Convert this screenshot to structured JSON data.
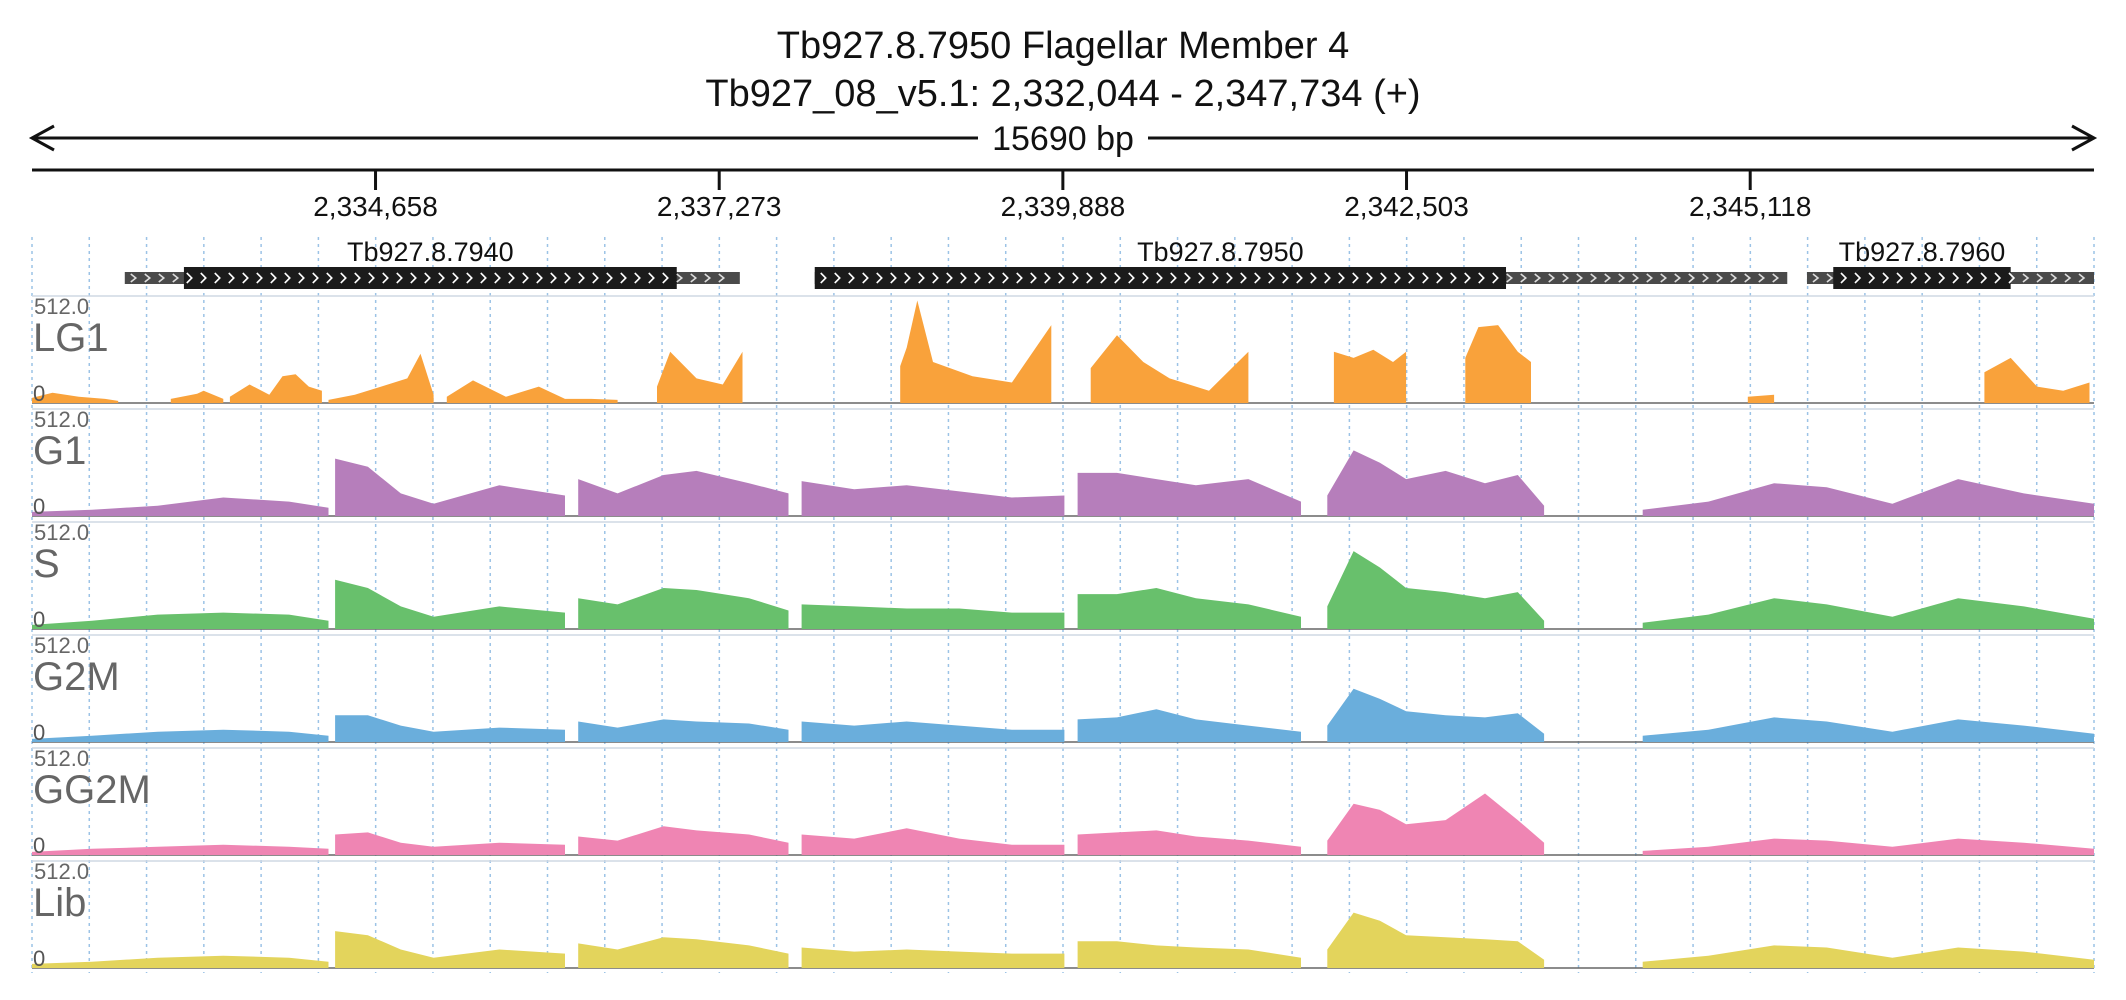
{
  "header": {
    "title_line1": "Tb927.8.7950  Flagellar Member 4",
    "title_line2": "Tb927_08_v5.1: 2,332,044 - 2,347,734 (+)",
    "span_label": "15690 bp"
  },
  "chart_data": {
    "type": "area",
    "region": {
      "chromosome": "Tb927_08_v5.1",
      "start": 2332044,
      "end": 2347734,
      "strand": "+"
    },
    "x_ticks": [
      {
        "pos": 2334658,
        "label": "2,334,658"
      },
      {
        "pos": 2337273,
        "label": "2,337,273"
      },
      {
        "pos": 2339888,
        "label": "2,339,888"
      },
      {
        "pos": 2342503,
        "label": "2,342,503"
      },
      {
        "pos": 2345118,
        "label": "2,345,118"
      }
    ],
    "genes": [
      {
        "name": "Tb927.8.7940",
        "utr_start": 2332750,
        "cds_start": 2333200,
        "cds_end": 2336950,
        "utr_end": 2337430
      },
      {
        "name": "Tb927.8.7950",
        "utr_start": 2338000,
        "cds_start": 2338000,
        "cds_end": 2343260,
        "utr_end": 2345400
      },
      {
        "name": "Tb927.8.7960",
        "utr_start": 2345550,
        "cds_start": 2345750,
        "cds_end": 2347100,
        "utr_end": 2347734
      }
    ],
    "ylim": [
      0,
      512
    ],
    "y_max_label": "512.0",
    "y_min_label": "0",
    "series": [
      {
        "name": "LG1",
        "color": "#f9a23b",
        "segments": [
          {
            "x": [
              2332044,
              2332200,
              2332400,
              2332600,
              2332700
            ],
            "y": [
              25,
              50,
              30,
              20,
              10
            ]
          },
          {
            "x": [
              2333100,
              2333300,
              2333350,
              2333500
            ],
            "y": [
              20,
              45,
              60,
              20
            ]
          },
          {
            "x": [
              2333550,
              2333700,
              2333850,
              2333950,
              2334050,
              2334150,
              2334250
            ],
            "y": [
              30,
              90,
              40,
              130,
              140,
              80,
              60
            ]
          },
          {
            "x": [
              2334300,
              2334500,
              2334700,
              2334900,
              2335000,
              2335100
            ],
            "y": [
              15,
              40,
              80,
              120,
              240,
              40
            ]
          },
          {
            "x": [
              2335200,
              2335400,
              2335650,
              2335900,
              2336100,
              2336300,
              2336500
            ],
            "y": [
              30,
              110,
              30,
              80,
              20,
              20,
              15
            ]
          },
          {
            "x": [
              2336800,
              2336900,
              2337100,
              2337300,
              2337450
            ],
            "y": [
              80,
              250,
              120,
              90,
              250
            ]
          },
          {
            "x": [
              2338650,
              2338700,
              2338780,
              2338900,
              2339200,
              2339500,
              2339800
            ],
            "y": [
              180,
              270,
              500,
              200,
              130,
              100,
              380
            ]
          },
          {
            "x": [
              2340100,
              2340300,
              2340500,
              2340700,
              2341000,
              2341300
            ],
            "y": [
              170,
              330,
              200,
              120,
              60,
              250
            ]
          },
          {
            "x": [
              2341950,
              2342100,
              2342250,
              2342400,
              2342500
            ],
            "y": [
              250,
              220,
              260,
              200,
              250
            ]
          },
          {
            "x": [
              2342950,
              2343050,
              2343200,
              2343350,
              2343450
            ],
            "y": [
              220,
              370,
              380,
              250,
              200
            ]
          },
          {
            "x": [
              2345100,
              2345300
            ],
            "y": [
              30,
              40
            ]
          },
          {
            "x": [
              2346900,
              2347100,
              2347300,
              2347500,
              2347700
            ],
            "y": [
              150,
              220,
              80,
              60,
              100
            ]
          }
        ]
      },
      {
        "name": "G1",
        "color": "#b67ebb",
        "segments": [
          {
            "x": [
              2332044,
              2332500,
              2333000,
              2333500,
              2334000,
              2334300
            ],
            "y": [
              20,
              30,
              50,
              90,
              70,
              40
            ]
          },
          {
            "x": [
              2334350,
              2334600,
              2334850,
              2335100,
              2335600,
              2336100
            ],
            "y": [
              280,
              240,
              110,
              60,
              150,
              100
            ]
          },
          {
            "x": [
              2336200,
              2336500,
              2336850,
              2337100,
              2337500,
              2337800
            ],
            "y": [
              180,
              110,
              200,
              220,
              160,
              110
            ]
          },
          {
            "x": [
              2337900,
              2338300,
              2338700,
              2339100,
              2339500,
              2339900
            ],
            "y": [
              170,
              130,
              150,
              120,
              90,
              100
            ]
          },
          {
            "x": [
              2340000,
              2340300,
              2340600,
              2340900,
              2341300,
              2341700
            ],
            "y": [
              210,
              210,
              180,
              150,
              180,
              70
            ]
          },
          {
            "x": [
              2341900,
              2342100,
              2342300,
              2342500,
              2342800,
              2343100,
              2343350,
              2343550
            ],
            "y": [
              100,
              320,
              260,
              180,
              220,
              160,
              200,
              50
            ]
          },
          {
            "x": [
              2344300,
              2344800,
              2345300,
              2345700,
              2346200,
              2346700,
              2347200,
              2347734
            ],
            "y": [
              30,
              70,
              160,
              140,
              60,
              180,
              110,
              60
            ]
          }
        ]
      },
      {
        "name": "S",
        "color": "#68c06c",
        "segments": [
          {
            "x": [
              2332044,
              2332500,
              2333000,
              2333500,
              2334000,
              2334300
            ],
            "y": [
              20,
              40,
              70,
              80,
              70,
              40
            ]
          },
          {
            "x": [
              2334350,
              2334600,
              2334850,
              2335100,
              2335600,
              2336100
            ],
            "y": [
              240,
              200,
              110,
              60,
              110,
              80
            ]
          },
          {
            "x": [
              2336200,
              2336500,
              2336850,
              2337100,
              2337500,
              2337800
            ],
            "y": [
              150,
              120,
              200,
              190,
              150,
              90
            ]
          },
          {
            "x": [
              2337900,
              2338300,
              2338700,
              2339100,
              2339500,
              2339900
            ],
            "y": [
              120,
              110,
              100,
              100,
              80,
              80
            ]
          },
          {
            "x": [
              2340000,
              2340300,
              2340600,
              2340900,
              2341300,
              2341700
            ],
            "y": [
              170,
              170,
              200,
              150,
              120,
              60
            ]
          },
          {
            "x": [
              2341900,
              2342100,
              2342300,
              2342500,
              2342800,
              2343100,
              2343350,
              2343550
            ],
            "y": [
              110,
              380,
              300,
              200,
              180,
              150,
              180,
              40
            ]
          },
          {
            "x": [
              2344300,
              2344800,
              2345300,
              2345700,
              2346200,
              2346700,
              2347200,
              2347734
            ],
            "y": [
              30,
              70,
              150,
              120,
              60,
              150,
              110,
              50
            ]
          }
        ]
      },
      {
        "name": "G2M",
        "color": "#6aaedc",
        "segments": [
          {
            "x": [
              2332044,
              2332500,
              2333000,
              2333500,
              2334000,
              2334300
            ],
            "y": [
              15,
              30,
              50,
              60,
              50,
              30
            ]
          },
          {
            "x": [
              2334350,
              2334600,
              2334850,
              2335100,
              2335600,
              2336100
            ],
            "y": [
              130,
              130,
              80,
              50,
              70,
              60
            ]
          },
          {
            "x": [
              2336200,
              2336500,
              2336850,
              2337100,
              2337500,
              2337800
            ],
            "y": [
              100,
              70,
              110,
              100,
              90,
              60
            ]
          },
          {
            "x": [
              2337900,
              2338300,
              2338700,
              2339100,
              2339500,
              2339900
            ],
            "y": [
              100,
              80,
              100,
              80,
              60,
              60
            ]
          },
          {
            "x": [
              2340000,
              2340300,
              2340600,
              2340900,
              2341300,
              2341700
            ],
            "y": [
              110,
              120,
              160,
              110,
              80,
              50
            ]
          },
          {
            "x": [
              2341900,
              2342100,
              2342300,
              2342500,
              2342800,
              2343100,
              2343350,
              2343550
            ],
            "y": [
              80,
              260,
              210,
              150,
              130,
              120,
              140,
              40
            ]
          },
          {
            "x": [
              2344300,
              2344800,
              2345300,
              2345700,
              2346200,
              2346700,
              2347200,
              2347734
            ],
            "y": [
              30,
              60,
              120,
              100,
              50,
              110,
              80,
              40
            ]
          }
        ]
      },
      {
        "name": "GG2M",
        "color": "#ef85b3",
        "segments": [
          {
            "x": [
              2332044,
              2332500,
              2333000,
              2333500,
              2334000,
              2334300
            ],
            "y": [
              15,
              30,
              40,
              50,
              40,
              30
            ]
          },
          {
            "x": [
              2334350,
              2334600,
              2334850,
              2335100,
              2335600,
              2336100
            ],
            "y": [
              100,
              110,
              60,
              40,
              60,
              50
            ]
          },
          {
            "x": [
              2336200,
              2336500,
              2336850,
              2337100,
              2337500,
              2337800
            ],
            "y": [
              90,
              70,
              140,
              120,
              100,
              60
            ]
          },
          {
            "x": [
              2337900,
              2338300,
              2338700,
              2339100,
              2339500,
              2339900
            ],
            "y": [
              100,
              80,
              130,
              80,
              50,
              50
            ]
          },
          {
            "x": [
              2340000,
              2340300,
              2340600,
              2340900,
              2341300,
              2341700
            ],
            "y": [
              100,
              110,
              120,
              90,
              70,
              40
            ]
          },
          {
            "x": [
              2341900,
              2342100,
              2342300,
              2342500,
              2342800,
              2343100,
              2343350,
              2343550
            ],
            "y": [
              70,
              250,
              220,
              150,
              170,
              300,
              170,
              60
            ]
          },
          {
            "x": [
              2344300,
              2344800,
              2345300,
              2345700,
              2346200,
              2346700,
              2347200,
              2347734
            ],
            "y": [
              20,
              40,
              80,
              70,
              40,
              80,
              60,
              30
            ]
          }
        ]
      },
      {
        "name": "Lib",
        "color": "#e3d45c",
        "segments": [
          {
            "x": [
              2332044,
              2332500,
              2333000,
              2333500,
              2334000,
              2334300
            ],
            "y": [
              20,
              30,
              50,
              60,
              50,
              30
            ]
          },
          {
            "x": [
              2334350,
              2334600,
              2334850,
              2335100,
              2335600,
              2336100
            ],
            "y": [
              180,
              160,
              90,
              50,
              90,
              70
            ]
          },
          {
            "x": [
              2336200,
              2336500,
              2336850,
              2337100,
              2337500,
              2337800
            ],
            "y": [
              120,
              90,
              150,
              140,
              110,
              70
            ]
          },
          {
            "x": [
              2337900,
              2338300,
              2338700,
              2339100,
              2339500,
              2339900
            ],
            "y": [
              100,
              80,
              90,
              80,
              70,
              70
            ]
          },
          {
            "x": [
              2340000,
              2340300,
              2340600,
              2340900,
              2341300,
              2341700
            ],
            "y": [
              130,
              130,
              110,
              100,
              90,
              50
            ]
          },
          {
            "x": [
              2341900,
              2342100,
              2342300,
              2342500,
              2342800,
              2343100,
              2343350,
              2343550
            ],
            "y": [
              90,
              270,
              230,
              160,
              150,
              140,
              130,
              40
            ]
          },
          {
            "x": [
              2344300,
              2344800,
              2345300,
              2345700,
              2346200,
              2346700,
              2347200,
              2347734
            ],
            "y": [
              30,
              60,
              110,
              100,
              50,
              100,
              80,
              40
            ]
          }
        ]
      }
    ]
  }
}
